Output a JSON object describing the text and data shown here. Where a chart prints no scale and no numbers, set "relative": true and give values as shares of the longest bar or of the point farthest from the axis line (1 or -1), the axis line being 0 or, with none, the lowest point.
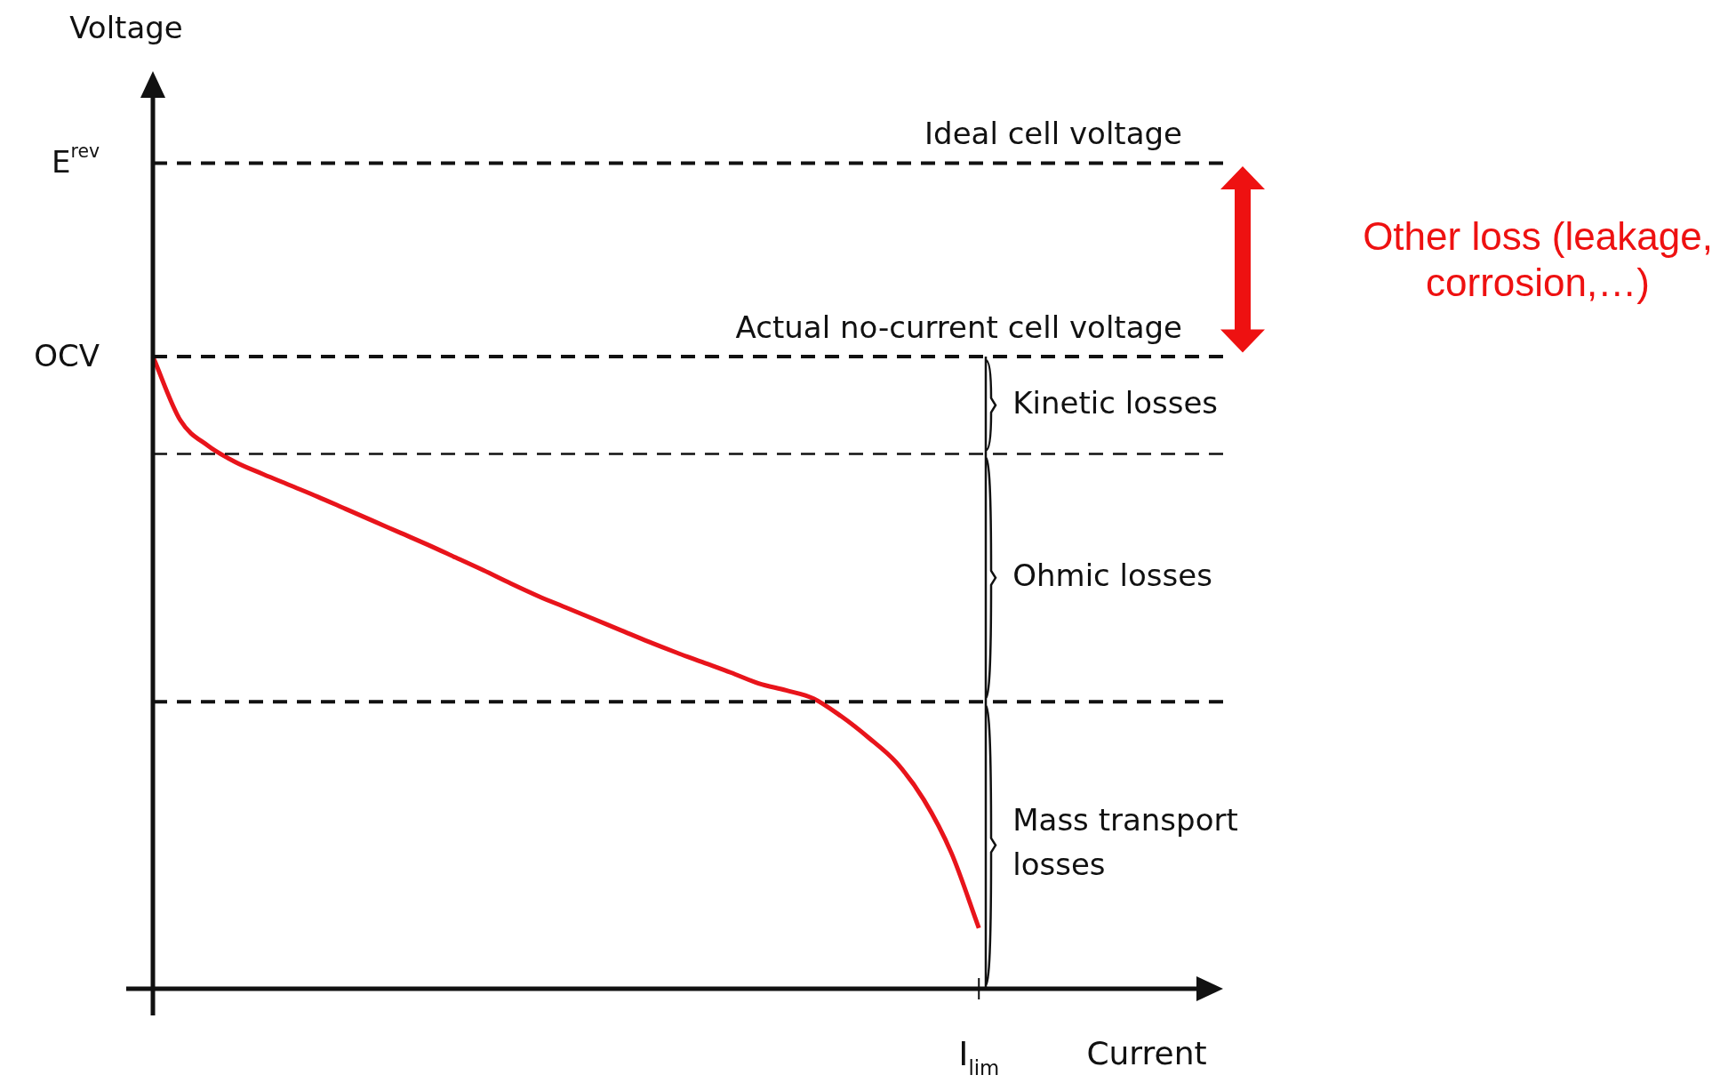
{
  "chart_data": {
    "type": "line",
    "relative": true,
    "xlabel": "Current",
    "categories": [
      null,
      null,
      null,
      null,
      null,
      null,
      null,
      null,
      null,
      null,
      null,
      null,
      null,
      null,
      null,
      null,
      null,
      null,
      null,
      null,
      null,
      null,
      null,
      null,
      null,
      null,
      null,
      null,
      null,
      null,
      null,
      null,
      null,
      null,
      null,
      null,
      null,
      null,
      null,
      null
    ],
    "series": [
      {
        "color": "#e8141b",
        "values": [
          1,
          0.899,
          0.859,
          0.833,
          0.814,
          0.796,
          0.778,
          0.759,
          0.74,
          0.721,
          0.702,
          0.682,
          0.662,
          0.641,
          0.621,
          0.603,
          0.585,
          0.567,
          0.549,
          0.532,
          0.516,
          0.5,
          0.483,
          0.472,
          0.459,
          0.431,
          0.397,
          0.358,
          0.299,
          0.215,
          0.096,
          null,
          null,
          null,
          null,
          null,
          null,
          null,
          null,
          null
        ]
      }
    ],
    "ref_lines": [
      {
        "axis": "y",
        "value": 1.306,
        "label": "E$^{rev}$",
        "line_style": "dashed"
      },
      {
        "axis": "y",
        "value": 1,
        "label": "OCV",
        "line_style": "dashed"
      },
      {
        "axis": "y",
        "value": 0.846,
        "label": null,
        "line_style": "dashed"
      },
      {
        "axis": "y",
        "value": 0.454,
        "label": null,
        "line_style": "dashed"
      }
    ],
    "annotations": [
      "Ideal cell voltage",
      "Actual no-current cell voltage",
      "I$_{lim}$",
      "Kinetic losses",
      "Ohmic losses",
      "Mass transport losses",
      "Other loss (leakage, corrosion,…)",
      "Voltage"
    ],
    "grid": false,
    "legend": false,
    "marker": "none",
    "line_style": "solid"
  }
}
